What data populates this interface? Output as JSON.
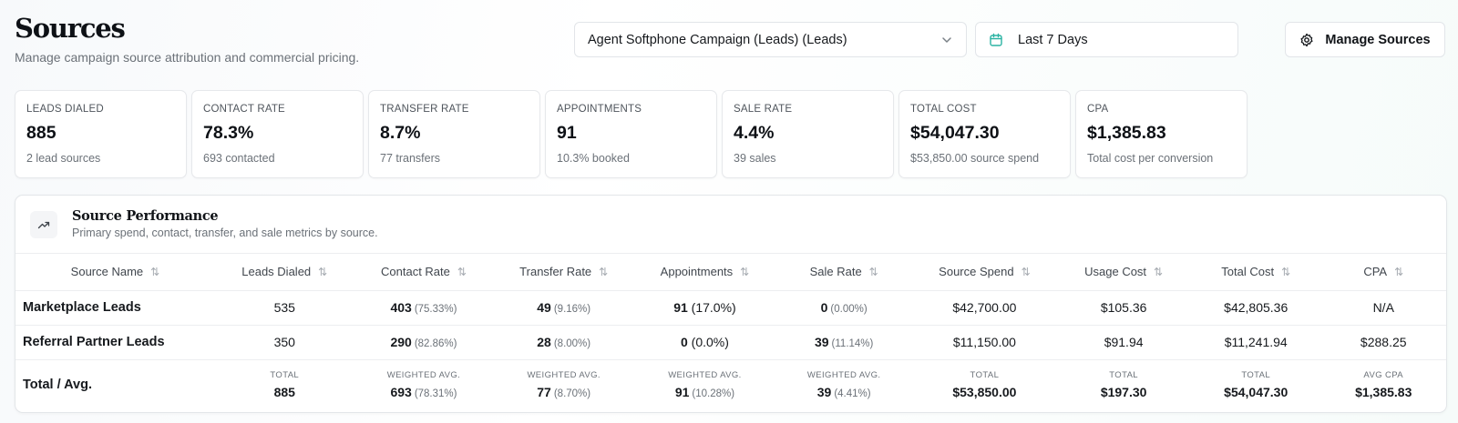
{
  "header": {
    "title": "Sources",
    "subtitle": "Manage campaign source attribution and commercial pricing."
  },
  "controls": {
    "campaign_select": "Agent Softphone Campaign (Leads) (Leads)",
    "date_range": "Last 7 Days",
    "manage_button": "Manage Sources"
  },
  "kpis": [
    {
      "label": "LEADS DIALED",
      "value": "885",
      "sub": "2 lead sources"
    },
    {
      "label": "CONTACT RATE",
      "value": "78.3%",
      "sub": "693 contacted"
    },
    {
      "label": "TRANSFER RATE",
      "value": "8.7%",
      "sub": "77 transfers"
    },
    {
      "label": "APPOINTMENTS",
      "value": "91",
      "sub": "10.3% booked"
    },
    {
      "label": "SALE RATE",
      "value": "4.4%",
      "sub": "39 sales"
    },
    {
      "label": "TOTAL COST",
      "value": "$54,047.30",
      "sub": "$53,850.00 source spend"
    },
    {
      "label": "CPA",
      "value": "$1,385.83",
      "sub": "Total cost per conversion"
    }
  ],
  "panel": {
    "title": "Source Performance",
    "subtitle": "Primary spend, contact, transfer, and sale metrics by source."
  },
  "table": {
    "columns": [
      "Source Name",
      "Leads Dialed",
      "Contact Rate",
      "Transfer Rate",
      "Appointments",
      "Sale Rate",
      "Source Spend",
      "Usage Cost",
      "Total Cost",
      "CPA"
    ],
    "rows": [
      {
        "name": "Marketplace Leads",
        "leads": "535",
        "contact": "403",
        "contact_pct": "(75.33%)",
        "transfer": "49",
        "transfer_pct": "(9.16%)",
        "appts": "91",
        "appts_pct": "(17.0%)",
        "sale": "0",
        "sale_pct": "(0.00%)",
        "spend": "$42,700.00",
        "usage": "$105.36",
        "total": "$42,805.36",
        "cpa": "N/A"
      },
      {
        "name": "Referral Partner Leads",
        "leads": "350",
        "contact": "290",
        "contact_pct": "(82.86%)",
        "transfer": "28",
        "transfer_pct": "(8.00%)",
        "appts": "0",
        "appts_pct": "(0.0%)",
        "sale": "39",
        "sale_pct": "(11.14%)",
        "spend": "$11,150.00",
        "usage": "$91.94",
        "total": "$11,241.94",
        "cpa": "$288.25"
      }
    ],
    "totals": {
      "name": "Total / Avg.",
      "leads_label": "TOTAL",
      "leads": "885",
      "contact_label": "WEIGHTED AVG.",
      "contact": "693",
      "contact_pct": "(78.31%)",
      "transfer_label": "WEIGHTED AVG.",
      "transfer": "77",
      "transfer_pct": "(8.70%)",
      "appts_label": "WEIGHTED AVG.",
      "appts": "91",
      "appts_pct": "(10.28%)",
      "sale_label": "WEIGHTED AVG.",
      "sale": "39",
      "sale_pct": "(4.41%)",
      "spend_label": "TOTAL",
      "spend": "$53,850.00",
      "usage_label": "TOTAL",
      "usage": "$197.30",
      "total_label": "TOTAL",
      "total": "$54,047.30",
      "cpa_label": "AVG CPA",
      "cpa": "$1,385.83"
    }
  },
  "icons": {
    "chevron": "chevron-down-icon",
    "calendar": "calendar-icon",
    "gear": "gear-icon",
    "trend": "trending-up-icon",
    "sort": "sort-icon"
  },
  "colors": {
    "calendar_accent": "#2bb3a3",
    "text_primary": "#111418",
    "text_muted": "#6b7178",
    "border": "#e3e6e9"
  }
}
